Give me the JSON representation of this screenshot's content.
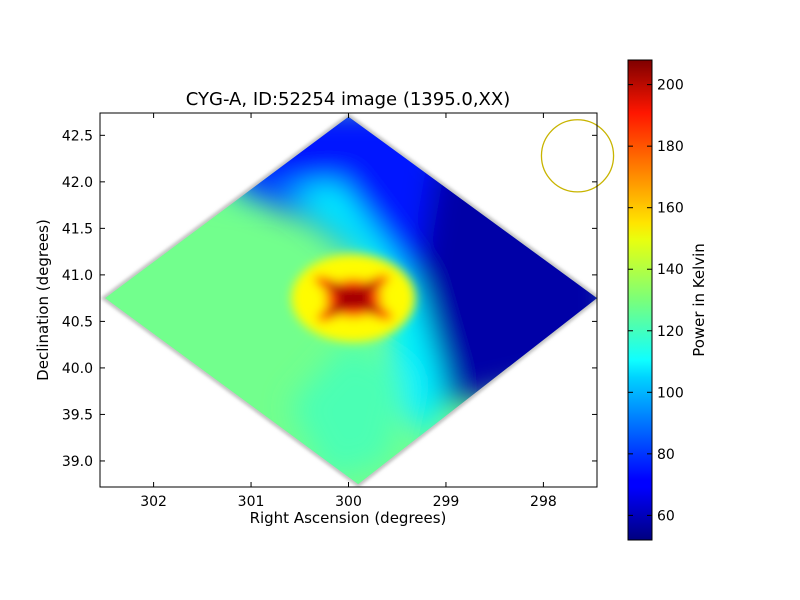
{
  "chart_data": {
    "type": "heatmap",
    "title": "CYG-A, ID:52254 image (1395.0,XX)",
    "xlabel": "Right Ascension (degrees)",
    "ylabel": "Declination (degrees)",
    "xlim": [
      302.55,
      297.45
    ],
    "ylim": [
      38.72,
      42.74
    ],
    "x_ticks": [
      302,
      301,
      300,
      299,
      298
    ],
    "x_tick_labels": [
      "302",
      "301",
      "300",
      "299",
      "298"
    ],
    "y_ticks": [
      39.0,
      39.5,
      40.0,
      40.5,
      41.0,
      41.5,
      42.0,
      42.5
    ],
    "y_tick_labels": [
      "39.0",
      "39.5",
      "40.0",
      "40.5",
      "41.0",
      "41.5",
      "42.0",
      "42.5"
    ],
    "colormap": "jet",
    "colorbar": {
      "label": "Power in Kelvin",
      "range": [
        52,
        208
      ],
      "ticks": [
        60,
        80,
        100,
        120,
        140,
        160,
        180,
        200
      ],
      "tick_labels": [
        "60",
        "80",
        "100",
        "120",
        "140",
        "160",
        "180",
        "200"
      ]
    },
    "footprint_corners_deg": {
      "top": [
        300.0,
        42.7
      ],
      "right": [
        297.45,
        40.75
      ],
      "bottom": [
        299.9,
        38.75
      ],
      "left": [
        302.5,
        40.75
      ]
    },
    "field_values_kelvin": {
      "peak_source_center": [
        299.95,
        40.75
      ],
      "peak_value": 208,
      "west_plateau": 128,
      "south_region": 122,
      "north_region": 75,
      "east_region": 58
    },
    "beam_circle": {
      "ra_center": 297.65,
      "dec_center": 42.28,
      "radius_deg": 0.37,
      "color": "#c8b400"
    }
  }
}
